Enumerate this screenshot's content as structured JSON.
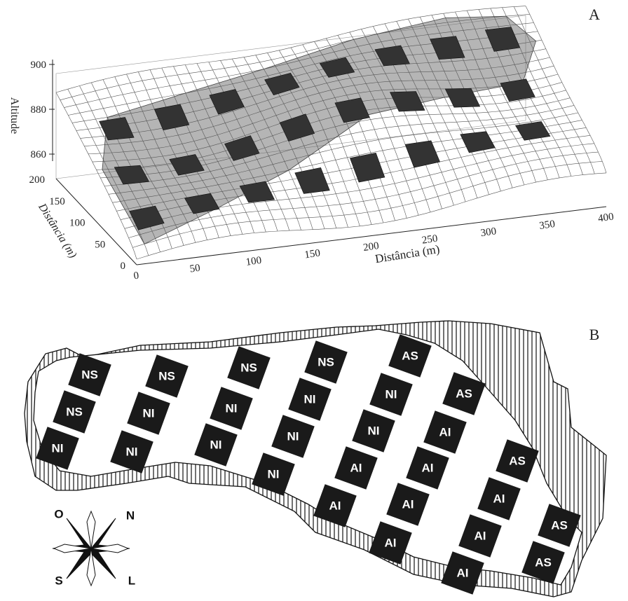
{
  "panel_a": {
    "label": "A",
    "z_axis": {
      "title": "Altitude",
      "ticks": [
        860,
        880,
        900
      ]
    },
    "y_axis": {
      "title": "Distância (m)",
      "ticks": [
        0,
        50,
        100,
        150,
        200
      ]
    },
    "x_axis": {
      "title": "Distância (m)",
      "ticks": [
        0,
        50,
        100,
        150,
        200,
        250,
        300,
        350,
        400
      ]
    }
  },
  "panel_b": {
    "label": "B",
    "plots": [
      "NS",
      "NS",
      "NI",
      "NS",
      "NI",
      "NI",
      "NS",
      "NI",
      "NI",
      "NS",
      "NI",
      "NI",
      "NI",
      "AS",
      "NI",
      "NI",
      "AI",
      "AI",
      "AS",
      "AI",
      "AI",
      "AI",
      "AI",
      "AS",
      "AI",
      "AI",
      "AI",
      "AS",
      "AS"
    ],
    "compass": {
      "west": "O",
      "north": "N",
      "south": "S",
      "east": "L"
    }
  }
}
